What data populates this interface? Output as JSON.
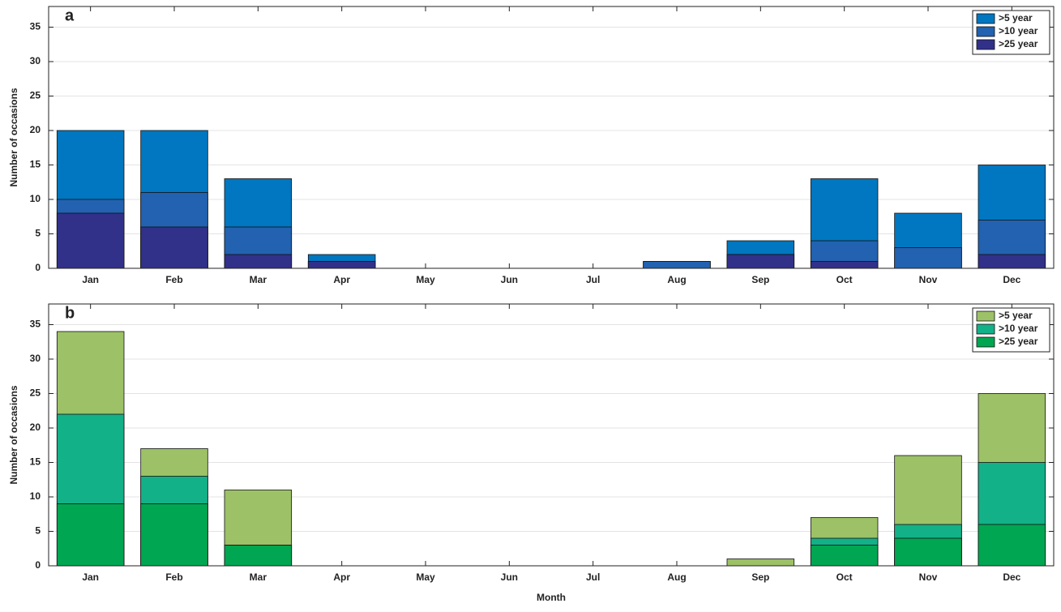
{
  "chart_data": [
    {
      "type": "bar",
      "panel_label": "a",
      "ylabel": "Number of occasions",
      "categories": [
        "Jan",
        "Feb",
        "Mar",
        "Apr",
        "May",
        "Jun",
        "Jul",
        "Aug",
        "Sep",
        "Oct",
        "Nov",
        "Dec"
      ],
      "series": [
        {
          "name": ">5 year",
          "color": "#0077c0",
          "values": [
            20,
            20,
            13,
            2,
            0,
            0,
            0,
            1,
            4,
            13,
            8,
            15
          ]
        },
        {
          "name": ">10 year",
          "color": "#2262b0",
          "values": [
            10,
            11,
            6,
            1,
            0,
            0,
            0,
            1,
            2,
            4,
            3,
            7
          ]
        },
        {
          "name": ">25 year",
          "color": "#31318a",
          "values": [
            8,
            6,
            2,
            1,
            0,
            0,
            0,
            0,
            2,
            1,
            0,
            2
          ]
        }
      ],
      "ylim": [
        0,
        38
      ],
      "yticks": [
        0,
        5,
        10,
        15,
        20,
        25,
        30,
        35
      ],
      "grid": true,
      "legend": "upper right"
    },
    {
      "type": "bar",
      "panel_label": "b",
      "ylabel": "Number of occasions",
      "xlabel": "Month",
      "categories": [
        "Jan",
        "Feb",
        "Mar",
        "Apr",
        "May",
        "Jun",
        "Jul",
        "Aug",
        "Sep",
        "Oct",
        "Nov",
        "Dec"
      ],
      "series": [
        {
          "name": ">5 year",
          "color": "#9dc167",
          "values": [
            34,
            17,
            11,
            0,
            0,
            0,
            0,
            0,
            1,
            7,
            16,
            25
          ]
        },
        {
          "name": ">10 year",
          "color": "#13b187",
          "values": [
            22,
            13,
            3,
            0,
            0,
            0,
            0,
            0,
            0,
            4,
            6,
            15
          ]
        },
        {
          "name": ">25 year",
          "color": "#00a651",
          "values": [
            9,
            9,
            3,
            0,
            0,
            0,
            0,
            0,
            0,
            3,
            4,
            6
          ]
        }
      ],
      "ylim": [
        0,
        38
      ],
      "yticks": [
        0,
        5,
        10,
        15,
        20,
        25,
        30,
        35
      ],
      "grid": true,
      "legend": "upper right"
    }
  ]
}
